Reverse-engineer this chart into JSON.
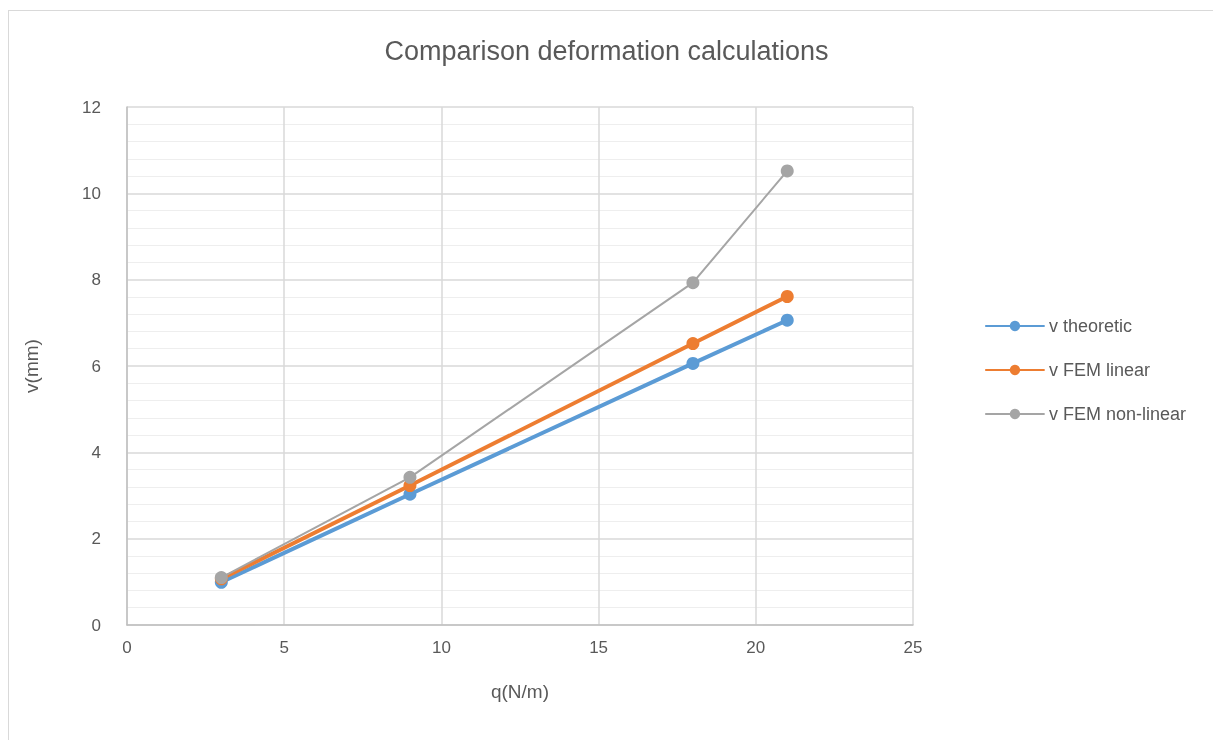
{
  "chart_data": {
    "type": "line",
    "title": "Comparison deformation calculations",
    "xlabel": "q(N/m)",
    "ylabel": "v(mm)",
    "x": [
      3,
      9,
      18,
      21
    ],
    "series": [
      {
        "name": "v theoretic",
        "color": "#5b9bd5",
        "values": [
          0.99,
          3.03,
          6.06,
          7.06
        ]
      },
      {
        "name": "v FEM linear",
        "color": "#ed7d31",
        "values": [
          1.07,
          3.23,
          6.52,
          7.61
        ]
      },
      {
        "name": "v FEM non-linear",
        "color": "#a5a5a5",
        "values": [
          1.1,
          3.42,
          7.93,
          10.52
        ]
      }
    ],
    "xlim": [
      0,
      25
    ],
    "xticks": [
      0,
      5,
      10,
      15,
      20,
      25
    ],
    "ylim": [
      0,
      12
    ],
    "yticks": [
      0,
      2,
      4,
      6,
      8,
      10,
      12
    ],
    "grid": true,
    "legend": "right",
    "marker": "circle",
    "line_style": "solid"
  }
}
